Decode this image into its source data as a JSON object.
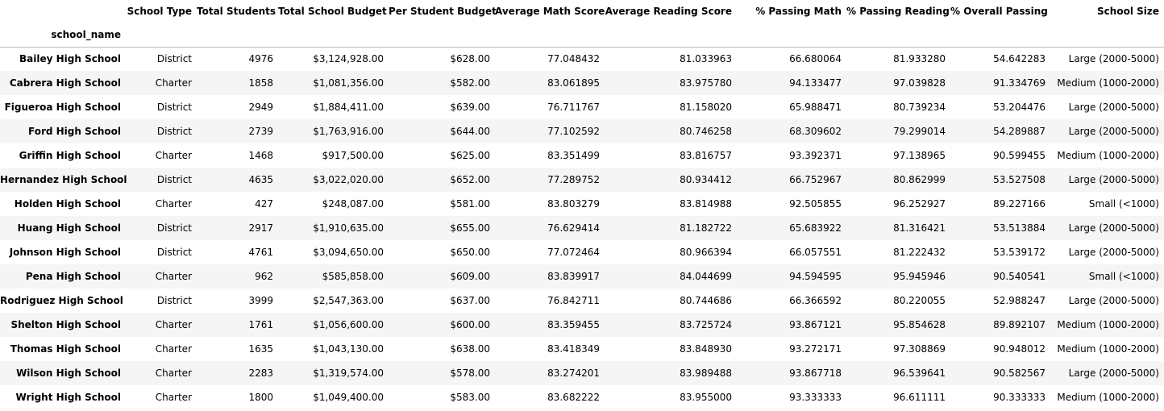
{
  "table": {
    "index_name": "school_name",
    "columns": [
      "School Type",
      "Total Students",
      "Total School Budget",
      "Per Student Budget",
      "Average Math Score",
      "Average Reading Score",
      "% Passing Math",
      "% Passing Reading",
      "% Overall Passing",
      "School Size"
    ],
    "rows": [
      {
        "name": "Bailey High School",
        "cells": [
          "District",
          "4976",
          "$3,124,928.00",
          "$628.00",
          "77.048432",
          "81.033963",
          "66.680064",
          "81.933280",
          "54.642283",
          "Large (2000-5000)"
        ]
      },
      {
        "name": "Cabrera High School",
        "cells": [
          "Charter",
          "1858",
          "$1,081,356.00",
          "$582.00",
          "83.061895",
          "83.975780",
          "94.133477",
          "97.039828",
          "91.334769",
          "Medium (1000-2000)"
        ]
      },
      {
        "name": "Figueroa High School",
        "cells": [
          "District",
          "2949",
          "$1,884,411.00",
          "$639.00",
          "76.711767",
          "81.158020",
          "65.988471",
          "80.739234",
          "53.204476",
          "Large (2000-5000)"
        ]
      },
      {
        "name": "Ford High School",
        "cells": [
          "District",
          "2739",
          "$1,763,916.00",
          "$644.00",
          "77.102592",
          "80.746258",
          "68.309602",
          "79.299014",
          "54.289887",
          "Large (2000-5000)"
        ]
      },
      {
        "name": "Griffin High School",
        "cells": [
          "Charter",
          "1468",
          "$917,500.00",
          "$625.00",
          "83.351499",
          "83.816757",
          "93.392371",
          "97.138965",
          "90.599455",
          "Medium (1000-2000)"
        ]
      },
      {
        "name": "Hernandez High School",
        "cells": [
          "District",
          "4635",
          "$3,022,020.00",
          "$652.00",
          "77.289752",
          "80.934412",
          "66.752967",
          "80.862999",
          "53.527508",
          "Large (2000-5000)"
        ]
      },
      {
        "name": "Holden High School",
        "cells": [
          "Charter",
          "427",
          "$248,087.00",
          "$581.00",
          "83.803279",
          "83.814988",
          "92.505855",
          "96.252927",
          "89.227166",
          "Small (<1000)"
        ]
      },
      {
        "name": "Huang High School",
        "cells": [
          "District",
          "2917",
          "$1,910,635.00",
          "$655.00",
          "76.629414",
          "81.182722",
          "65.683922",
          "81.316421",
          "53.513884",
          "Large (2000-5000)"
        ]
      },
      {
        "name": "Johnson High School",
        "cells": [
          "District",
          "4761",
          "$3,094,650.00",
          "$650.00",
          "77.072464",
          "80.966394",
          "66.057551",
          "81.222432",
          "53.539172",
          "Large (2000-5000)"
        ]
      },
      {
        "name": "Pena High School",
        "cells": [
          "Charter",
          "962",
          "$585,858.00",
          "$609.00",
          "83.839917",
          "84.044699",
          "94.594595",
          "95.945946",
          "90.540541",
          "Small (<1000)"
        ]
      },
      {
        "name": "Rodriguez High School",
        "cells": [
          "District",
          "3999",
          "$2,547,363.00",
          "$637.00",
          "76.842711",
          "80.744686",
          "66.366592",
          "80.220055",
          "52.988247",
          "Large (2000-5000)"
        ]
      },
      {
        "name": "Shelton High School",
        "cells": [
          "Charter",
          "1761",
          "$1,056,600.00",
          "$600.00",
          "83.359455",
          "83.725724",
          "93.867121",
          "95.854628",
          "89.892107",
          "Medium (1000-2000)"
        ]
      },
      {
        "name": "Thomas High School",
        "cells": [
          "Charter",
          "1635",
          "$1,043,130.00",
          "$638.00",
          "83.418349",
          "83.848930",
          "93.272171",
          "97.308869",
          "90.948012",
          "Medium (1000-2000)"
        ]
      },
      {
        "name": "Wilson High School",
        "cells": [
          "Charter",
          "2283",
          "$1,319,574.00",
          "$578.00",
          "83.274201",
          "83.989488",
          "93.867718",
          "96.539641",
          "90.582567",
          "Large (2000-5000)"
        ]
      },
      {
        "name": "Wright High School",
        "cells": [
          "Charter",
          "1800",
          "$1,049,400.00",
          "$583.00",
          "83.682222",
          "83.955000",
          "93.333333",
          "96.611111",
          "90.333333",
          "Medium (1000-2000)"
        ]
      }
    ]
  }
}
